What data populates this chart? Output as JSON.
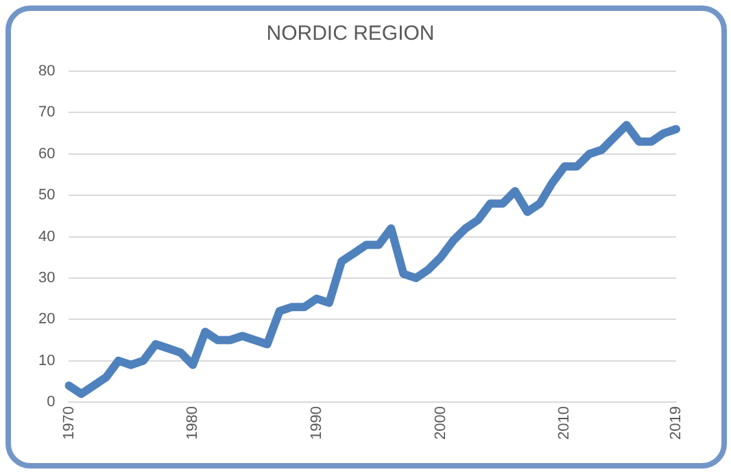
{
  "chart_data": {
    "type": "line",
    "title": "NORDIC REGION",
    "categories": [
      "1970",
      null,
      null,
      null,
      null,
      null,
      null,
      null,
      null,
      null,
      "1980",
      null,
      null,
      null,
      null,
      null,
      null,
      null,
      null,
      null,
      "1990",
      null,
      null,
      null,
      null,
      null,
      null,
      null,
      null,
      null,
      "2000",
      null,
      null,
      null,
      null,
      null,
      null,
      null,
      null,
      null,
      "2010",
      null,
      null,
      null,
      null,
      null,
      null,
      null,
      null,
      "2019"
    ],
    "series": [
      {
        "color": "#4f81bd",
        "values": [
          4,
          2,
          4,
          6,
          10,
          9,
          10,
          14,
          13,
          12,
          9,
          17,
          15,
          15,
          16,
          15,
          14,
          22,
          23,
          23,
          25,
          24,
          34,
          36,
          38,
          38,
          42,
          31,
          30,
          32,
          35,
          39,
          42,
          44,
          48,
          48,
          51,
          46,
          48,
          53,
          57,
          57,
          60,
          61,
          64,
          67,
          63,
          63,
          65,
          66
        ]
      }
    ],
    "ylim": [
      0,
      80
    ],
    "yticks": [
      0,
      10,
      20,
      30,
      40,
      50,
      60,
      70,
      80
    ],
    "grid": "y",
    "legend": false,
    "marker": "none",
    "line_style": "solid"
  }
}
